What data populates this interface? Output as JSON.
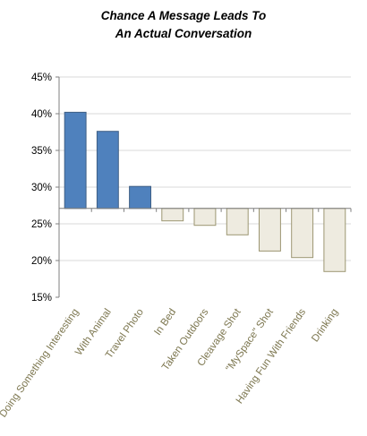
{
  "chart_data": {
    "type": "bar",
    "title_lines": [
      "Chance A  Message Leads To",
      "An Actual Conversation"
    ],
    "xlabel": "",
    "ylabel": "",
    "categories": [
      "Doing Something Interesting",
      "With Animal",
      "Travel Photo",
      "In Bed",
      "Taken Outdoors",
      "Cleavage Shot",
      "\"MySpace\" Shot",
      "Having Fun With Friends",
      "Drinking"
    ],
    "values": [
      40.2,
      37.6,
      30.1,
      25.4,
      24.8,
      23.5,
      21.3,
      20.4,
      18.5
    ],
    "baseline": 27.1,
    "ylim": [
      15,
      45
    ],
    "yticks": [
      15,
      20,
      25,
      30,
      35,
      40,
      45
    ],
    "ytick_labels": [
      "15%",
      "20%",
      "25%",
      "30%",
      "35%",
      "40%",
      "45%"
    ],
    "grid": true,
    "legend": "none",
    "colors": {
      "above": "#4f81bd",
      "above_edge": "#3f5f85",
      "below": "#eeebe0",
      "below_edge": "#9c9672",
      "gridline": "#d9d9d9",
      "axis": "#7f7f7f",
      "xtick_text": "#7d7750"
    }
  }
}
